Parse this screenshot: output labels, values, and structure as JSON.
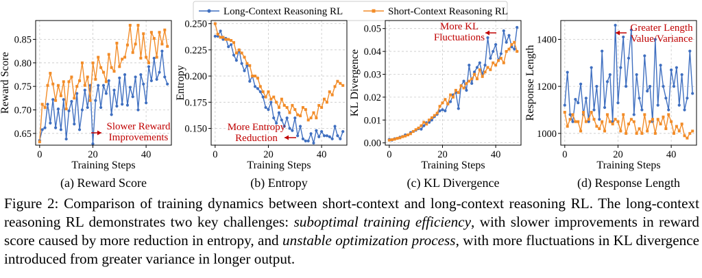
{
  "colors": {
    "long": "#3f6fc0",
    "short": "#f28c28",
    "annotation": "#c00000"
  },
  "legend": {
    "long": "Long-Context Reasoning RL",
    "short": "Short-Context Reasoning RL",
    "placement": "top-center"
  },
  "chart_data": [
    {
      "type": "line",
      "subtitle": "(a) Reward Score",
      "xlabel": "Training Steps",
      "ylabel": "Reward Score",
      "xlim": [
        -1.5,
        49.5
      ],
      "ylim": [
        0.625,
        0.89
      ],
      "xticks": [
        0,
        20,
        40
      ],
      "yticks": [
        0.65,
        0.7,
        0.75,
        0.8,
        0.85
      ],
      "ytick_labels": [
        "0.65",
        "0.70",
        "0.75",
        "0.80",
        "0.85"
      ],
      "grid": true,
      "annotation": "Slower Reward\nImprovements",
      "series": [
        {
          "name": "Long-Context Reasoning RL",
          "values": [
            0.635,
            0.658,
            0.662,
            0.712,
            0.672,
            0.722,
            0.662,
            0.702,
            0.658,
            0.722,
            0.638,
            0.698,
            0.718,
            0.67,
            0.735,
            0.658,
            0.7,
            0.742,
            0.705,
            0.752,
            0.628,
            0.72,
            0.752,
            0.705,
            0.752,
            0.735,
            0.762,
            0.69,
            0.742,
            0.708,
            0.768,
            0.712,
            0.775,
            0.71,
            0.748,
            0.728,
            0.77,
            0.7,
            0.775,
            0.755,
            0.715,
            0.792,
            0.762,
            0.81,
            0.765,
            0.78,
            0.825,
            0.77,
            0.755
          ]
        },
        {
          "name": "Short-Context Reasoning RL",
          "values": [
            0.632,
            0.712,
            0.705,
            0.752,
            0.778,
            0.755,
            0.72,
            0.752,
            0.73,
            0.76,
            0.702,
            0.76,
            0.77,
            0.725,
            0.75,
            0.762,
            0.8,
            0.752,
            0.77,
            0.72,
            0.8,
            0.765,
            0.812,
            0.79,
            0.78,
            0.76,
            0.818,
            0.79,
            0.782,
            0.842,
            0.792,
            0.808,
            0.812,
            0.838,
            0.88,
            0.822,
            0.84,
            0.88,
            0.81,
            0.862,
            0.812,
            0.8,
            0.865,
            0.852,
            0.812,
            0.865,
            0.84,
            0.87,
            0.835
          ]
        }
      ]
    },
    {
      "type": "line",
      "subtitle": "(b) Entropy",
      "xlabel": "Training Steps",
      "ylabel": "Entropy",
      "xlim": [
        -1.5,
        49.5
      ],
      "ylim": [
        0.134,
        0.253
      ],
      "xticks": [
        0,
        20,
        40
      ],
      "yticks": [
        0.15,
        0.175,
        0.2,
        0.225,
        0.25
      ],
      "ytick_labels": [
        "0.150",
        "0.175",
        "0.200",
        "0.225",
        "0.250"
      ],
      "grid": true,
      "annotation": "More Entropy\nReduction",
      "series": [
        {
          "name": "Long-Context Reasoning RL",
          "values": [
            0.238,
            0.238,
            0.243,
            0.235,
            0.236,
            0.228,
            0.23,
            0.22,
            0.215,
            0.225,
            0.212,
            0.205,
            0.21,
            0.195,
            0.2,
            0.19,
            0.188,
            0.185,
            0.18,
            0.17,
            0.168,
            0.175,
            0.16,
            0.155,
            0.165,
            0.158,
            0.152,
            0.16,
            0.15,
            0.148,
            0.16,
            0.143,
            0.152,
            0.14,
            0.138,
            0.138,
            0.145,
            0.136,
            0.148,
            0.142,
            0.147,
            0.143,
            0.143,
            0.142,
            0.14,
            0.152,
            0.143,
            0.14,
            0.147
          ]
        },
        {
          "name": "Short-Context Reasoning RL",
          "values": [
            0.25,
            0.24,
            0.237,
            0.237,
            0.235,
            0.235,
            0.234,
            0.232,
            0.222,
            0.225,
            0.222,
            0.218,
            0.212,
            0.21,
            0.2,
            0.2,
            0.198,
            0.19,
            0.185,
            0.18,
            0.185,
            0.178,
            0.18,
            0.175,
            0.17,
            0.178,
            0.172,
            0.17,
            0.165,
            0.172,
            0.168,
            0.163,
            0.162,
            0.17,
            0.168,
            0.158,
            0.16,
            0.165,
            0.16,
            0.172,
            0.17,
            0.178,
            0.175,
            0.185,
            0.182,
            0.19,
            0.195,
            0.193,
            0.191
          ]
        }
      ]
    },
    {
      "type": "line",
      "subtitle": "(c) KL Divergence",
      "xlabel": "Training Steps",
      "ylabel": "KL Divergence",
      "xlim": [
        -1.5,
        49.5
      ],
      "ylim": [
        -0.001,
        0.0535
      ],
      "xticks": [
        0,
        20,
        40
      ],
      "yticks": [
        0.0,
        0.01,
        0.02,
        0.03,
        0.04,
        0.05
      ],
      "ytick_labels": [
        "0.00",
        "0.01",
        "0.02",
        "0.03",
        "0.04",
        "0.05"
      ],
      "grid": true,
      "annotation": "More KL\nFluctuations",
      "series": [
        {
          "name": "Long-Context Reasoning RL",
          "values": [
            0.0015,
            0.0012,
            0.0018,
            0.002,
            0.0025,
            0.0028,
            0.0035,
            0.0035,
            0.0045,
            0.005,
            0.0055,
            0.0062,
            0.006,
            0.0075,
            0.0088,
            0.009,
            0.01,
            0.0115,
            0.0125,
            0.014,
            0.0145,
            0.014,
            0.017,
            0.018,
            0.021,
            0.022,
            0.015,
            0.025,
            0.027,
            0.023,
            0.034,
            0.026,
            0.031,
            0.033,
            0.035,
            0.03,
            0.034,
            0.046,
            0.037,
            0.04,
            0.043,
            0.036,
            0.039,
            0.049,
            0.044,
            0.047,
            0.042,
            0.041,
            0.0505
          ]
        },
        {
          "name": "Short-Context Reasoning RL",
          "values": [
            0.0012,
            0.0014,
            0.0016,
            0.002,
            0.0022,
            0.0027,
            0.003,
            0.0035,
            0.004,
            0.005,
            0.0058,
            0.0065,
            0.0075,
            0.009,
            0.0082,
            0.01,
            0.011,
            0.012,
            0.013,
            0.016,
            0.0175,
            0.019,
            0.017,
            0.021,
            0.02,
            0.023,
            0.022,
            0.025,
            0.024,
            0.026,
            0.027,
            0.028,
            0.03,
            0.028,
            0.032,
            0.029,
            0.031,
            0.033,
            0.032,
            0.035,
            0.034,
            0.036,
            0.037,
            0.035,
            0.04,
            0.041,
            0.043,
            0.044,
            0.04
          ]
        }
      ]
    },
    {
      "type": "line",
      "subtitle": "(d) Response Length",
      "xlabel": "Training Steps",
      "ylabel": "Response Length",
      "xlim": [
        -1.5,
        49.5
      ],
      "ylim": [
        950,
        1480
      ],
      "xticks": [
        0,
        20,
        40
      ],
      "yticks": [
        1000,
        1200,
        1400
      ],
      "ytick_labels": [
        "1000",
        "1200",
        "1400"
      ],
      "grid": true,
      "annotation": "Greater Length\nValue/Variance",
      "series": [
        {
          "name": "Long-Context Reasoning RL",
          "values": [
            1120,
            1260,
            1080,
            1050,
            1145,
            1130,
            1210,
            1080,
            1150,
            1050,
            1280,
            1100,
            1200,
            1060,
            1350,
            1110,
            1220,
            1250,
            1050,
            1460,
            1130,
            1280,
            1410,
            1200,
            1320,
            1440,
            1080,
            1250,
            1150,
            1100,
            1330,
            1180,
            1200,
            1050,
            1400,
            1120,
            1290,
            1200,
            1150,
            1100,
            1270,
            1200,
            1280,
            1120,
            1250,
            1100,
            1150,
            1350,
            1170
          ]
        },
        {
          "name": "Short-Context Reasoning RL",
          "values": [
            1090,
            1030,
            1060,
            1080,
            1050,
            1050,
            1010,
            1090,
            1050,
            1060,
            1090,
            1060,
            1030,
            1020,
            1050,
            1010,
            1080,
            1050,
            1040,
            1060,
            1050,
            1010,
            1080,
            1000,
            1040,
            1060,
            1050,
            1000,
            1020,
            1000,
            1080,
            1010,
            1050,
            1060,
            1000,
            1060,
            1040,
            1070,
            1020,
            1080,
            1050,
            1000,
            1030,
            1010,
            1040,
            990,
            980,
            1000,
            1010
          ]
        }
      ]
    }
  ],
  "caption": {
    "label": "Figure 2:",
    "parts": [
      {
        "t": " Comparison of training dynamics between short-context and long-context reasoning RL. The long-context reasoning RL demonstrates two key challenges: ",
        "i": false
      },
      {
        "t": "suboptimal training efficiency",
        "i": true
      },
      {
        "t": ", with slower improvements in reward score caused by more reduction in entropy, and ",
        "i": false
      },
      {
        "t": "unstable optimization process",
        "i": true
      },
      {
        "t": ", with more fluctuations in KL divergence introduced from greater variance in longer output.",
        "i": false
      }
    ]
  }
}
